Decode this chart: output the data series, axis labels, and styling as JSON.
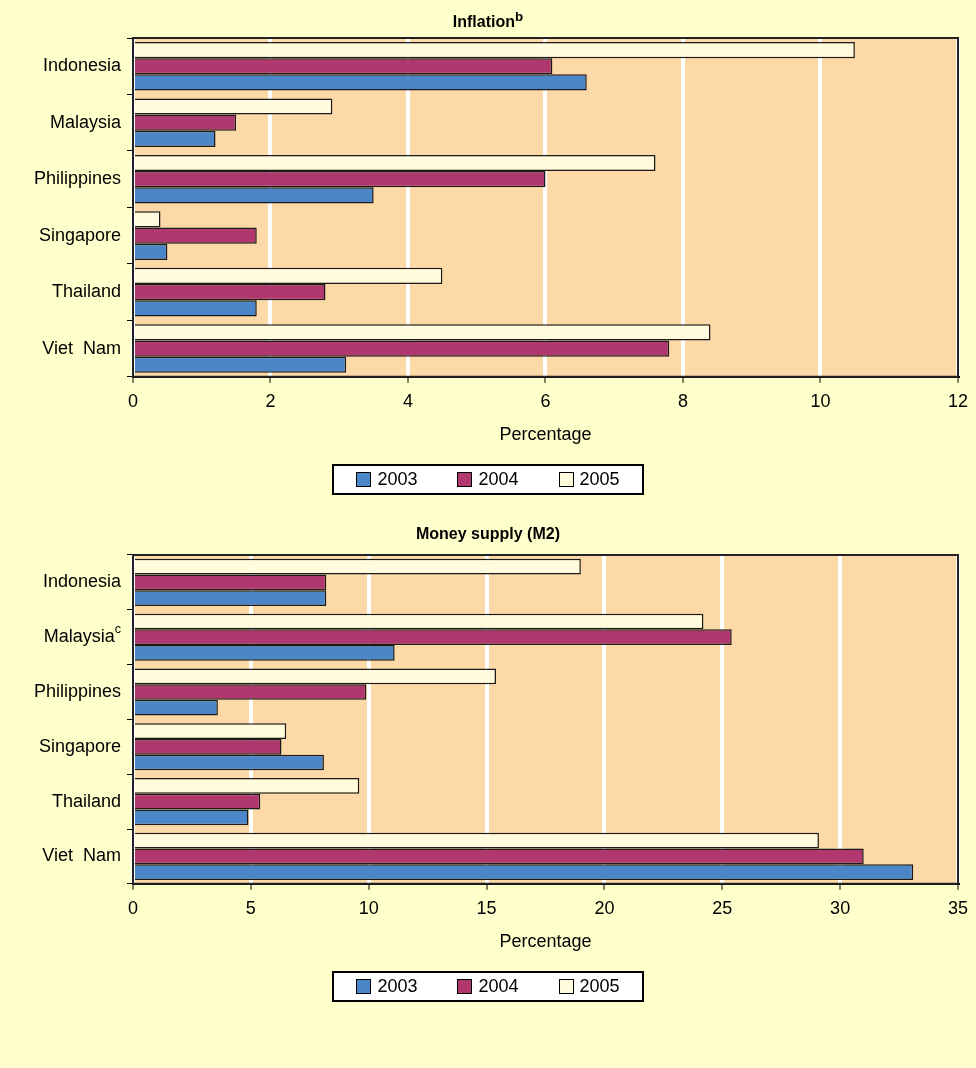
{
  "chart_data": [
    {
      "type": "bar",
      "orientation": "horizontal",
      "title": "Inflation$^{b}$",
      "xlabel": "Percentage",
      "categories": [
        "Indonesia",
        "Malaysia",
        "Philippines",
        "Singapore",
        "Thailand",
        "Viet  Nam"
      ],
      "series": [
        {
          "name": "2003",
          "color": "#4a86c8",
          "values": [
            6.6,
            1.2,
            3.5,
            0.5,
            1.8,
            3.1
          ]
        },
        {
          "name": "2004",
          "color": "#b0386e",
          "values": [
            6.1,
            1.5,
            6.0,
            1.8,
            2.8,
            7.8
          ]
        },
        {
          "name": "2005",
          "color": "#fffbdc",
          "values": [
            10.5,
            2.9,
            7.6,
            0.4,
            4.5,
            8.4
          ]
        }
      ],
      "xlim": [
        0,
        12
      ],
      "xticks": [
        0,
        2,
        4,
        6,
        8,
        10,
        12
      ],
      "grid": "x",
      "legend": "bottom"
    },
    {
      "type": "bar",
      "orientation": "horizontal",
      "title": "Money supply (M2)",
      "xlabel": "Percentage",
      "categories": [
        "Indonesia",
        "Malaysia$^{c}$",
        "Philippines",
        "Singapore",
        "Thailand",
        "Viet  Nam"
      ],
      "series": [
        {
          "name": "2003",
          "color": "#4a86c8",
          "values": [
            8.2,
            11.1,
            3.6,
            8.1,
            4.9,
            33.1
          ]
        },
        {
          "name": "2004",
          "color": "#b0386e",
          "values": [
            8.2,
            25.4,
            9.9,
            6.3,
            5.4,
            31.0
          ]
        },
        {
          "name": "2005",
          "color": "#fffbdc",
          "values": [
            19.0,
            24.2,
            15.4,
            6.5,
            9.6,
            29.1
          ]
        }
      ],
      "xlim": [
        0,
        35
      ],
      "xticks": [
        0,
        5,
        10,
        15,
        20,
        25,
        30,
        35
      ],
      "grid": "x",
      "legend": "bottom"
    }
  ]
}
